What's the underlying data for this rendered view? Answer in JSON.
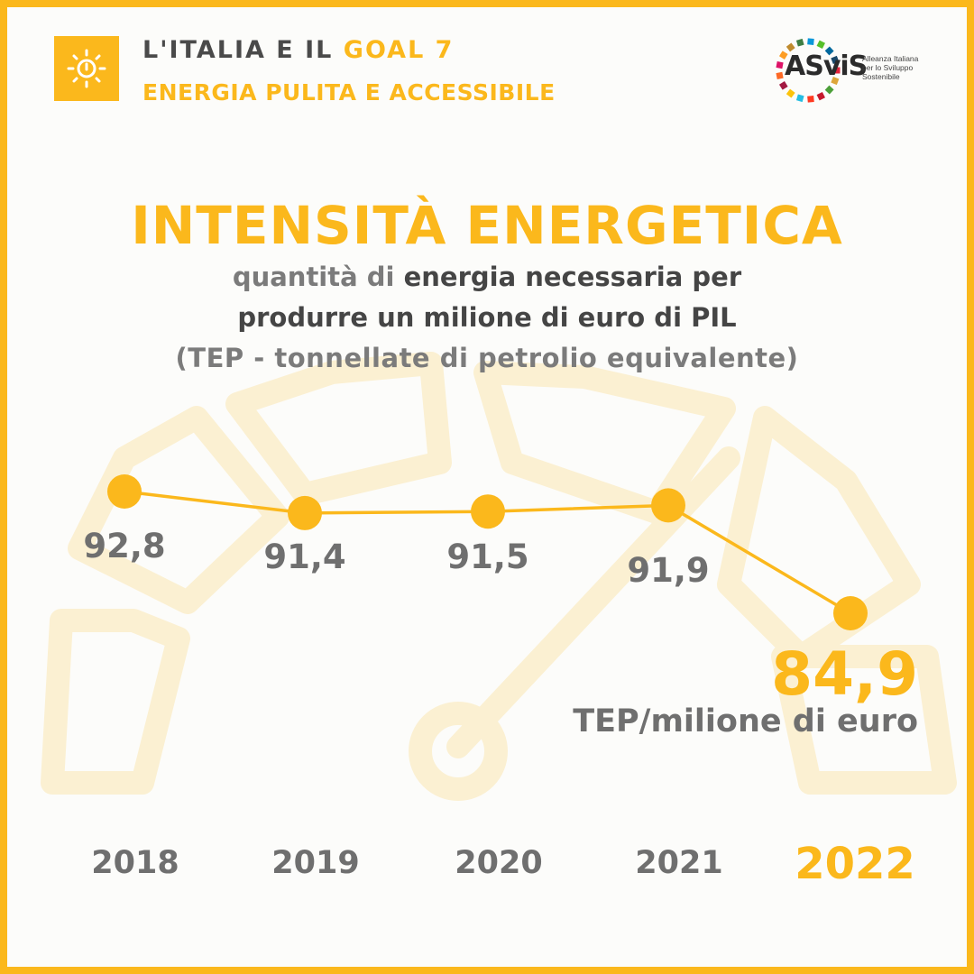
{
  "header": {
    "line1_prefix": "L'ITALIA E IL",
    "line1_goal": "GOAL 7",
    "line2": "ENERGIA PULITA E ACCESSIBILE",
    "goal_icon": "sun-power-icon"
  },
  "logo": {
    "name": "ASviS",
    "subtitle_lines": [
      "Alleanza Italiana",
      "per lo Sviluppo",
      "Sostenibile"
    ],
    "icon": "sdg-color-ring-icon"
  },
  "title": "INTENSITÀ ENERGETICA",
  "subtitle": {
    "line1_grey": "quantità di",
    "line1_dark": "energia necessaria per",
    "line2": "produrre un milione di euro di PIL",
    "line3": "(TEP - tonnellate di petrolio equivalente)"
  },
  "chart_data": {
    "type": "line",
    "categories": [
      "2018",
      "2019",
      "2020",
      "2021",
      "2022"
    ],
    "values": [
      92.8,
      91.4,
      91.5,
      91.9,
      84.9
    ],
    "value_labels": [
      "92,8",
      "91,4",
      "91,5",
      "91,9",
      "84,9"
    ],
    "unit_label": "TEP/milione di euro",
    "highlight_index": 4,
    "grid": false,
    "colors": {
      "accent": "#fbb81c",
      "label": "#6f6f6f",
      "background_gauge": "#fbefcf"
    }
  }
}
